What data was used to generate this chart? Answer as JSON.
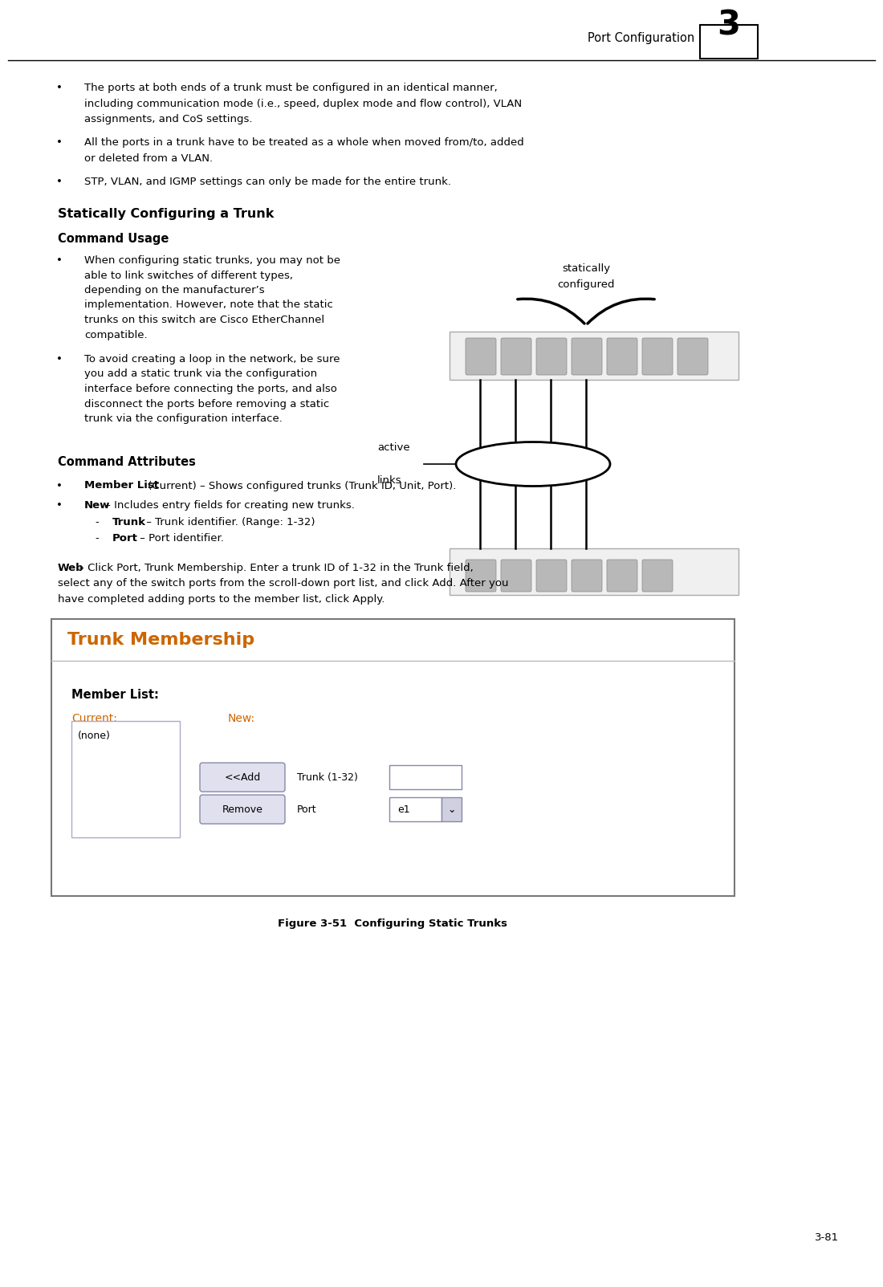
{
  "bg_color": "#ffffff",
  "page_width": 10.8,
  "page_height": 15.7,
  "header_text": "Port Configuration",
  "header_number": "3",
  "bullet1_line1": "The ports at both ends of a trunk must be configured in an identical manner,",
  "bullet1_line2": "including communication mode (i.e., speed, duplex mode and flow control), VLAN",
  "bullet1_line3": "assignments, and CoS settings.",
  "bullet2_line1": "All the ports in a trunk have to be treated as a whole when moved from/to, added",
  "bullet2_line2": "or deleted from a VLAN.",
  "bullet3_line1": "STP, VLAN, and IGMP settings can only be made for the entire trunk.",
  "section_title": "Statically Configuring a Trunk",
  "cmd_usage": "Command Usage",
  "cu_b1_lines": [
    "When configuring static trunks, you may not be",
    "able to link switches of different types,",
    "depending on the manufacturer’s",
    "implementation. However, note that the static",
    "trunks on this switch are Cisco EtherChannel",
    "compatible."
  ],
  "cu_b2_lines": [
    "To avoid creating a loop in the network, be sure",
    "you add a static trunk via the configuration",
    "interface before connecting the ports, and also",
    "disconnect the ports before removing a static",
    "trunk via the configuration interface."
  ],
  "diag_label1": "statically",
  "diag_label2": "configured",
  "diag_label3": "active",
  "diag_label4": "links",
  "cmd_attribs": "Command Attributes",
  "ca_b1_bold": "Member List",
  "ca_b1_rest": " (Current) – Shows configured trunks (Trunk ID, Unit, Port).",
  "ca_b2_bold": "New",
  "ca_b2_rest": " – Includes entry fields for creating new trunks.",
  "ca_sub1_bold": "Trunk",
  "ca_sub1_rest": " – Trunk identifier. (Range: 1-32)",
  "ca_sub2_bold": "Port",
  "ca_sub2_rest": " – Port identifier.",
  "web_bold": "Web",
  "web_line1": " – Click Port, Trunk Membership. Enter a trunk ID of 1-32 in the Trunk field,",
  "web_line2": "select any of the switch ports from the scroll-down port list, and click Add. After you",
  "web_line3": "have completed adding ports to the member list, click Apply.",
  "box_title": "Trunk Membership",
  "box_member_list": "Member List:",
  "box_current": "Current:",
  "box_new": "New:",
  "box_none": "(none)",
  "box_add_btn": "<<Add",
  "box_remove_btn": "Remove",
  "box_trunk_label": "Trunk (1-32)",
  "box_port_label": "Port",
  "box_port_value": "e1",
  "figure_caption": "Figure 3-51  Configuring Static Trunks",
  "page_number": "3-81",
  "font_color": "#000000",
  "orange_color": "#cc6600"
}
